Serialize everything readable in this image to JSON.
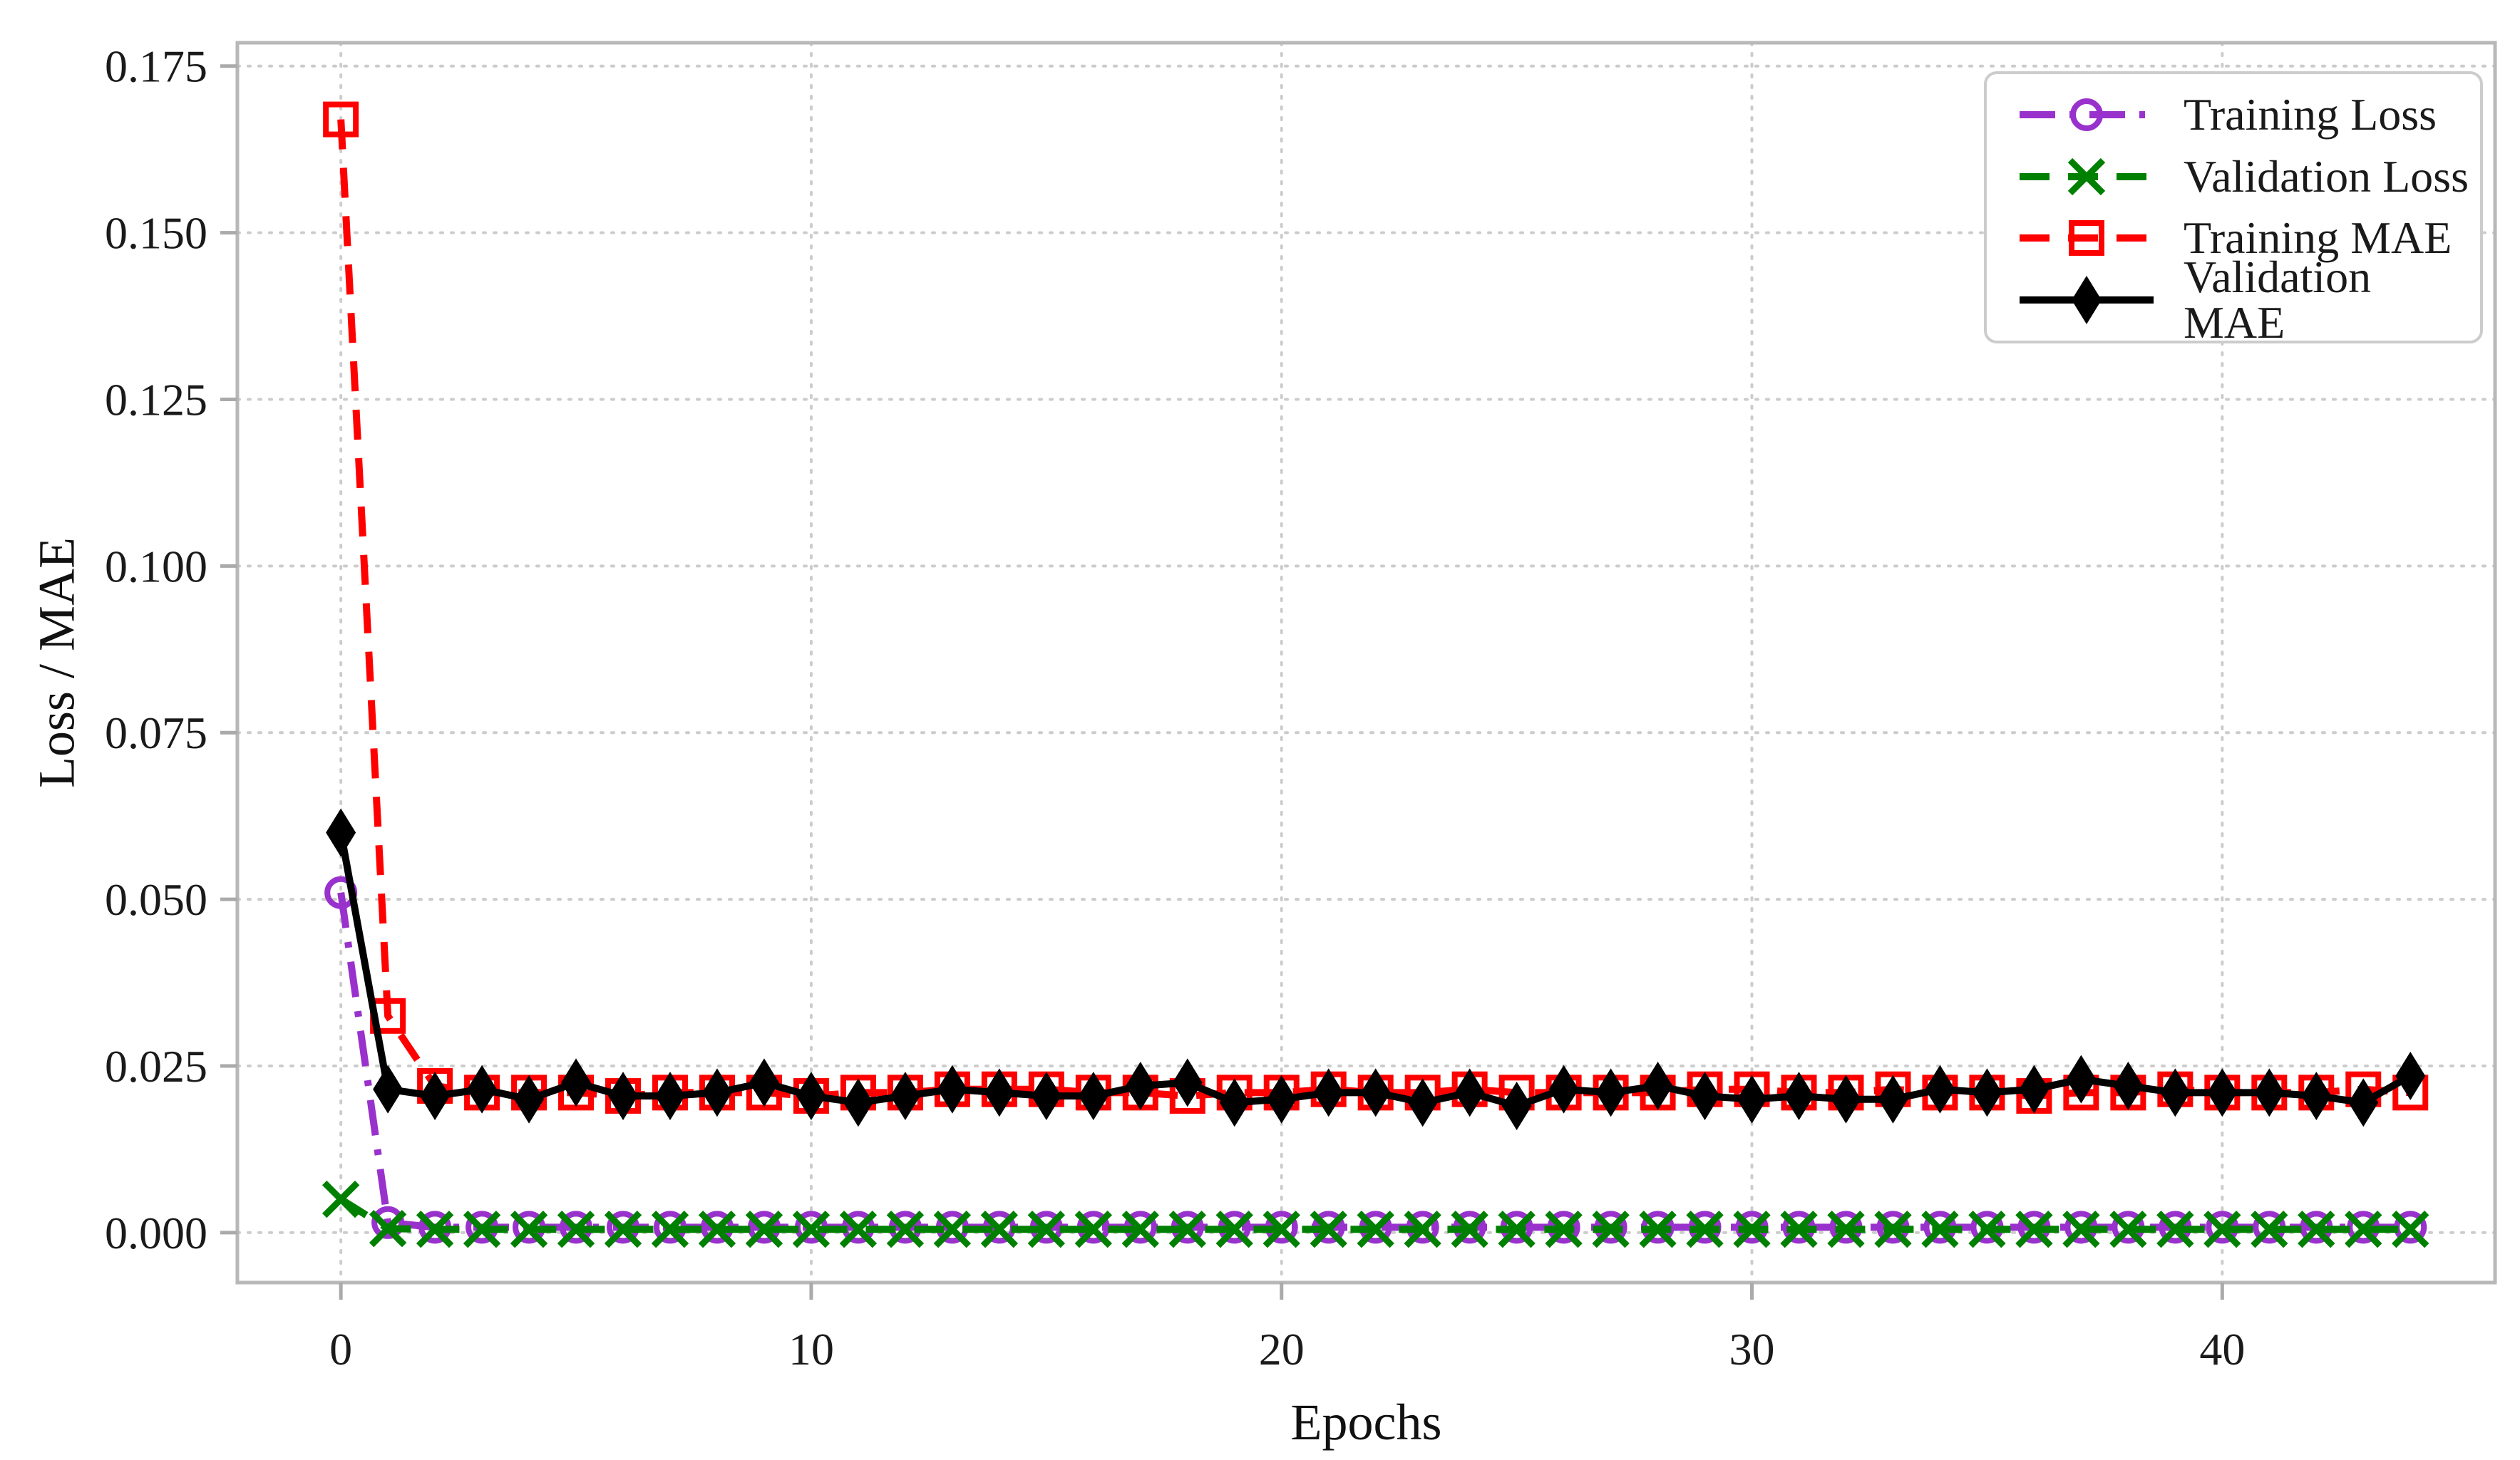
{
  "figure": {
    "background": "#ffffff"
  },
  "chart_data": {
    "type": "line",
    "title": "",
    "xlabel": "Epochs",
    "ylabel": "Loss / MAE",
    "x_ticks": [
      0,
      10,
      20,
      30,
      40
    ],
    "y_ticks": [
      "0.000",
      "0.025",
      "0.050",
      "0.075",
      "0.100",
      "0.125",
      "0.150",
      "0.175"
    ],
    "xlim": [
      -2.2,
      45.8
    ],
    "ylim": [
      -0.0075,
      0.1785
    ],
    "grid": true,
    "legend_position": "upper right",
    "x": [
      0,
      1,
      2,
      3,
      4,
      5,
      6,
      7,
      8,
      9,
      10,
      11,
      12,
      13,
      14,
      15,
      16,
      17,
      18,
      19,
      20,
      21,
      22,
      23,
      24,
      25,
      26,
      27,
      28,
      29,
      30,
      31,
      32,
      33,
      34,
      35,
      36,
      37,
      38,
      39,
      40,
      41,
      42,
      43,
      44
    ],
    "series": [
      {
        "name": "Training Loss",
        "color": "#9932CC",
        "linestyle": "dashdot",
        "marker": "circle",
        "values": [
          0.051,
          0.0015,
          0.0008,
          0.0008,
          0.0008,
          0.0008,
          0.0008,
          0.0008,
          0.0008,
          0.0008,
          0.0008,
          0.0008,
          0.0008,
          0.0008,
          0.0008,
          0.0008,
          0.0008,
          0.0008,
          0.0008,
          0.0008,
          0.0008,
          0.0008,
          0.0008,
          0.0008,
          0.0008,
          0.0008,
          0.0008,
          0.0008,
          0.0008,
          0.0008,
          0.0008,
          0.0008,
          0.0008,
          0.0008,
          0.0008,
          0.0008,
          0.0008,
          0.0008,
          0.0008,
          0.0008,
          0.0008,
          0.0008,
          0.0008,
          0.0008,
          0.0008
        ]
      },
      {
        "name": "Validation Loss",
        "color": "#008000",
        "linestyle": "dashed",
        "marker": "x",
        "values": [
          0.005,
          0.0006,
          0.0005,
          0.0005,
          0.0005,
          0.0005,
          0.0005,
          0.0005,
          0.0005,
          0.0005,
          0.0005,
          0.0005,
          0.0005,
          0.0005,
          0.0005,
          0.0005,
          0.0005,
          0.0005,
          0.0005,
          0.0005,
          0.0005,
          0.0005,
          0.0005,
          0.0005,
          0.0005,
          0.0005,
          0.0005,
          0.0005,
          0.0005,
          0.0005,
          0.0005,
          0.0005,
          0.0005,
          0.0005,
          0.0005,
          0.0005,
          0.0005,
          0.0005,
          0.0005,
          0.0005,
          0.0005,
          0.0005,
          0.0005,
          0.0005,
          0.0005
        ]
      },
      {
        "name": "Training MAE",
        "color": "#FF0000",
        "linestyle": "dashed",
        "marker": "square",
        "values": [
          0.167,
          0.0325,
          0.022,
          0.021,
          0.021,
          0.021,
          0.0205,
          0.021,
          0.021,
          0.021,
          0.0205,
          0.021,
          0.021,
          0.0215,
          0.0215,
          0.0215,
          0.021,
          0.021,
          0.0205,
          0.021,
          0.021,
          0.0215,
          0.021,
          0.021,
          0.0215,
          0.021,
          0.021,
          0.021,
          0.021,
          0.0215,
          0.0215,
          0.021,
          0.021,
          0.0215,
          0.021,
          0.021,
          0.0205,
          0.021,
          0.021,
          0.0215,
          0.021,
          0.021,
          0.021,
          0.0215,
          0.021
        ]
      },
      {
        "name": "Validation MAE",
        "color": "#000000",
        "linestyle": "solid",
        "marker": "diamond",
        "values": [
          0.06,
          0.0215,
          0.0205,
          0.0215,
          0.02,
          0.0225,
          0.0205,
          0.0205,
          0.021,
          0.0225,
          0.0205,
          0.0195,
          0.0205,
          0.0215,
          0.021,
          0.0205,
          0.0205,
          0.022,
          0.0225,
          0.0195,
          0.02,
          0.021,
          0.021,
          0.0195,
          0.021,
          0.019,
          0.0215,
          0.021,
          0.022,
          0.0205,
          0.02,
          0.0205,
          0.02,
          0.02,
          0.0215,
          0.021,
          0.0215,
          0.023,
          0.022,
          0.021,
          0.021,
          0.021,
          0.0205,
          0.0195,
          0.0235
        ]
      }
    ],
    "styles": {
      "grid_color": "#cccccc",
      "spine_color": "#b8b8b8",
      "tick_color": "#aaaaaa",
      "tick_label_color": "#1a1a1a"
    }
  }
}
